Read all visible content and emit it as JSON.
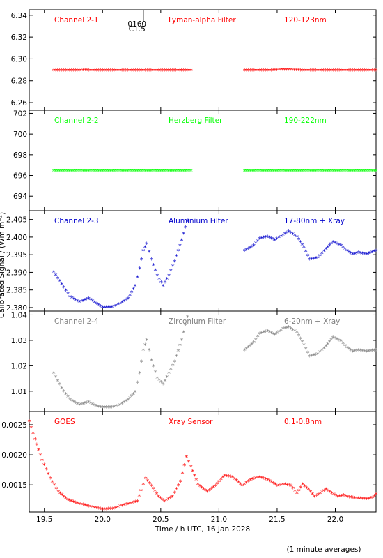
{
  "chart_data": {
    "type": "scatter",
    "xlabel": "Time / h UTC, 16 Jan 2028",
    "ylabel": "Calibrated Signal / (Wm m⁻²)",
    "footnote": "(1 minute averages)",
    "xlim": [
      19.37,
      22.35
    ],
    "xticks": [
      19.5,
      20.0,
      20.5,
      21.0,
      21.5,
      22.0
    ],
    "xtick_labels": [
      "19.5",
      "20.0",
      "20.5",
      "21.0",
      "21.5",
      "22.0"
    ],
    "marker": "*",
    "annotation": {
      "x": 20.35,
      "top": "0160",
      "bottom": "C1.5"
    },
    "panels": [
      {
        "labels": [
          "Channel 2-1",
          "Lyman-alpha Filter",
          "120-123nm"
        ],
        "color": "#ff0000",
        "ylim": [
          6.253,
          6.345
        ],
        "yticks": [
          6.26,
          6.28,
          6.3,
          6.32,
          6.34
        ],
        "ytick_labels": [
          "6.26",
          "6.28",
          "6.30",
          "6.32",
          "6.34"
        ],
        "segments": [
          {
            "x": [
              19.58,
              19.7,
              19.85,
              20.0,
              20.2,
              20.4,
              20.55,
              20.76
            ],
            "y": [
              6.289,
              6.289,
              6.2893,
              6.289,
              6.289,
              6.289,
              6.289,
              6.289
            ]
          },
          {
            "x": [
              21.22,
              21.4,
              21.58,
              21.75,
              21.9,
              22.1,
              22.35
            ],
            "y": [
              6.289,
              6.289,
              6.2898,
              6.289,
              6.289,
              6.289,
              6.289
            ]
          }
        ]
      },
      {
        "labels": [
          "Channel 2-2",
          "Herzberg Filter",
          "190-222nm"
        ],
        "color": "#00ff00",
        "ylim": [
          692.6,
          702.3
        ],
        "yticks": [
          694,
          696,
          698,
          700,
          702
        ],
        "ytick_labels": [
          "694",
          "696",
          "698",
          "700",
          "702"
        ],
        "segments": [
          {
            "x": [
              19.58,
              20.0,
              20.4,
              20.76
            ],
            "y": [
              696.4,
              696.4,
              696.4,
              696.4
            ]
          },
          {
            "x": [
              21.22,
              21.6,
              22.0,
              22.35
            ],
            "y": [
              696.4,
              696.4,
              696.4,
              696.4
            ]
          }
        ]
      },
      {
        "labels": [
          "Channel 2-3",
          "Aluminium Filter",
          "17-80nm + Xray"
        ],
        "color": "#0000cc",
        "ylim": [
          2.379,
          2.4075
        ],
        "yticks": [
          2.38,
          2.385,
          2.39,
          2.395,
          2.4,
          2.405
        ],
        "ytick_labels": [
          "2.380",
          "2.385",
          "2.390",
          "2.395",
          "2.400",
          "2.405"
        ],
        "segments": [
          {
            "x": [
              19.58,
              19.65,
              19.72,
              19.8,
              19.88,
              19.95,
              20.0,
              20.08,
              20.15,
              20.22,
              20.28,
              20.32,
              20.35,
              20.38,
              20.42,
              20.47,
              20.52,
              20.57,
              20.62,
              20.68,
              20.73
            ],
            "y": [
              2.39,
              2.3865,
              2.383,
              2.3815,
              2.3825,
              2.381,
              2.38,
              2.38,
              2.381,
              2.3825,
              2.386,
              2.391,
              2.396,
              2.398,
              2.3935,
              2.389,
              2.386,
              2.389,
              2.393,
              2.399,
              2.4045
            ]
          },
          {
            "x": [
              21.22,
              21.3,
              21.35,
              21.42,
              21.48,
              21.55,
              21.6,
              21.67,
              21.73,
              21.78,
              21.85,
              21.92,
              21.98,
              22.05,
              22.1,
              22.15,
              22.2,
              22.27,
              22.35
            ],
            "y": [
              2.396,
              2.3975,
              2.3995,
              2.4,
              2.399,
              2.4005,
              2.4015,
              2.4,
              2.397,
              2.3935,
              2.394,
              2.3965,
              2.3985,
              2.3975,
              2.396,
              2.395,
              2.3955,
              2.395,
              2.396
            ]
          }
        ]
      },
      {
        "labels": [
          "Channel 2-4",
          "Zirconium Filter",
          "6-20nm + Xray"
        ],
        "color": "#808080",
        "ylim": [
          1.002,
          1.0415
        ],
        "yticks": [
          1.01,
          1.02,
          1.03,
          1.04
        ],
        "ytick_labels": [
          "1.01",
          "1.02",
          "1.03",
          "1.04"
        ],
        "segments": [
          {
            "x": [
              19.58,
              19.65,
              19.72,
              19.8,
              19.88,
              19.95,
              20.0,
              20.08,
              20.15,
              20.22,
              20.28,
              20.32,
              20.35,
              20.38,
              20.42,
              20.47,
              20.52,
              20.57,
              20.62,
              20.68,
              20.73
            ],
            "y": [
              1.017,
              1.011,
              1.0065,
              1.0045,
              1.0055,
              1.004,
              1.0035,
              1.0035,
              1.0045,
              1.0065,
              1.0095,
              1.017,
              1.026,
              1.03,
              1.022,
              1.015,
              1.0125,
              1.017,
              1.0215,
              1.03,
              1.039
            ]
          },
          {
            "x": [
              21.22,
              21.3,
              21.35,
              21.42,
              21.48,
              21.55,
              21.6,
              21.67,
              21.73,
              21.78,
              21.85,
              21.92,
              21.98,
              22.05,
              22.1,
              22.15,
              22.2,
              22.27,
              22.35
            ],
            "y": [
              1.026,
              1.029,
              1.0325,
              1.0335,
              1.032,
              1.0345,
              1.035,
              1.033,
              1.028,
              1.0235,
              1.0245,
              1.0275,
              1.031,
              1.0295,
              1.027,
              1.0255,
              1.026,
              1.0255,
              1.026
            ]
          }
        ]
      },
      {
        "labels": [
          "GOES",
          "Xray Sensor",
          "0.1-0.8nm"
        ],
        "color": "#ff0000",
        "ylim": [
          0.00105,
          0.00272
        ],
        "yticks": [
          0.0015,
          0.002,
          0.0025
        ],
        "ytick_labels": [
          "0.0015",
          "0.0020",
          "0.0025"
        ],
        "segments": [
          {
            "x": [
              19.37,
              19.42,
              19.48,
              19.55,
              19.62,
              19.7,
              19.8,
              19.9,
              20.0,
              20.1,
              20.15,
              20.22,
              20.3,
              20.33,
              20.37,
              20.42,
              20.48,
              20.53,
              20.6,
              20.67,
              20.72,
              20.76,
              20.82,
              20.9,
              20.97,
              21.05,
              21.12,
              21.2,
              21.27,
              21.35,
              21.42,
              21.5,
              21.57,
              21.62,
              21.67,
              21.72,
              21.77,
              21.82,
              21.87,
              21.92,
              21.97,
              22.02,
              22.07,
              22.12,
              22.2,
              22.27,
              22.32,
              22.35
            ],
            "y": [
              0.00255,
              0.00225,
              0.0019,
              0.0016,
              0.00138,
              0.00125,
              0.00118,
              0.00113,
              0.00109,
              0.0011,
              0.00114,
              0.00118,
              0.00122,
              0.0014,
              0.0016,
              0.00148,
              0.0013,
              0.00122,
              0.0013,
              0.00155,
              0.00196,
              0.0018,
              0.0015,
              0.00138,
              0.00148,
              0.00165,
              0.00162,
              0.00148,
              0.00158,
              0.00162,
              0.00158,
              0.00148,
              0.0015,
              0.00148,
              0.00135,
              0.0015,
              0.00142,
              0.0013,
              0.00135,
              0.00142,
              0.00136,
              0.0013,
              0.00132,
              0.00129,
              0.00127,
              0.00126,
              0.00128,
              0.00134
            ]
          }
        ]
      }
    ]
  }
}
